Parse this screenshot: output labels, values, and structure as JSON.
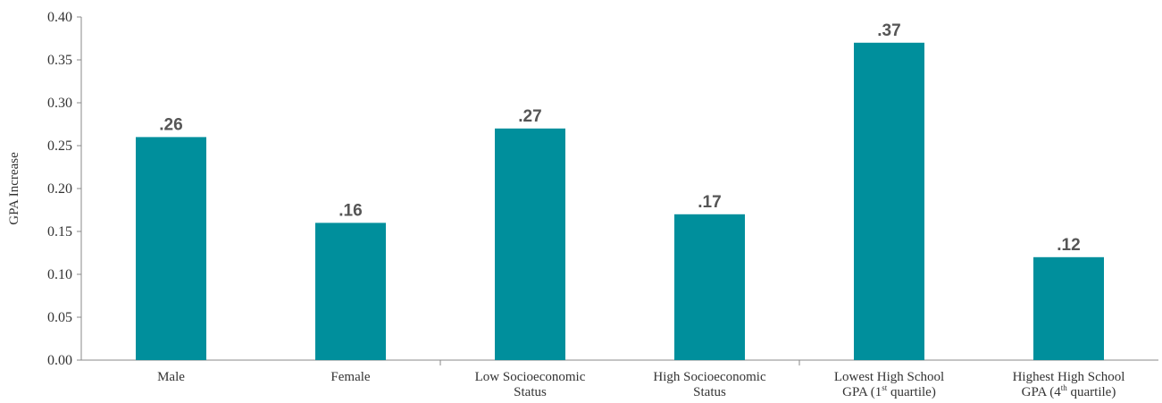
{
  "chart_data": {
    "type": "bar",
    "ylabel": "GPA Increase",
    "xlabel": "",
    "ylim": [
      0,
      0.4
    ],
    "yticks": [
      0.0,
      0.05,
      0.1,
      0.15,
      0.2,
      0.25,
      0.3,
      0.35,
      0.4
    ],
    "ytick_labels": [
      "0.00",
      "0.05",
      "0.10",
      "0.15",
      "0.20",
      "0.25",
      "0.30",
      "0.35",
      "0.40"
    ],
    "bar_color": "#008f9c",
    "grid": false,
    "categories": [
      {
        "lines": [
          [
            {
              "t": "Male"
            }
          ]
        ]
      },
      {
        "lines": [
          [
            {
              "t": "Female"
            }
          ]
        ]
      },
      {
        "lines": [
          [
            {
              "t": "Low Socioeconomic"
            }
          ],
          [
            {
              "t": "Status"
            }
          ]
        ]
      },
      {
        "lines": [
          [
            {
              "t": "High Socioeconomic"
            }
          ],
          [
            {
              "t": "Status"
            }
          ]
        ]
      },
      {
        "lines": [
          [
            {
              "t": "Lowest High School"
            }
          ],
          [
            {
              "t": "GPA (1"
            },
            {
              "t": "st",
              "sup": true
            },
            {
              "t": " quartile)"
            }
          ]
        ]
      },
      {
        "lines": [
          [
            {
              "t": "Highest High School"
            }
          ],
          [
            {
              "t": "GPA (4"
            },
            {
              "t": "th",
              "sup": true
            },
            {
              "t": " quartile)"
            }
          ]
        ]
      }
    ],
    "values": [
      0.26,
      0.16,
      0.27,
      0.17,
      0.37,
      0.12
    ],
    "data_labels": [
      ".26",
      ".16",
      ".27",
      ".17",
      ".37",
      ".12"
    ],
    "group_separators_after": [
      1,
      3
    ]
  }
}
